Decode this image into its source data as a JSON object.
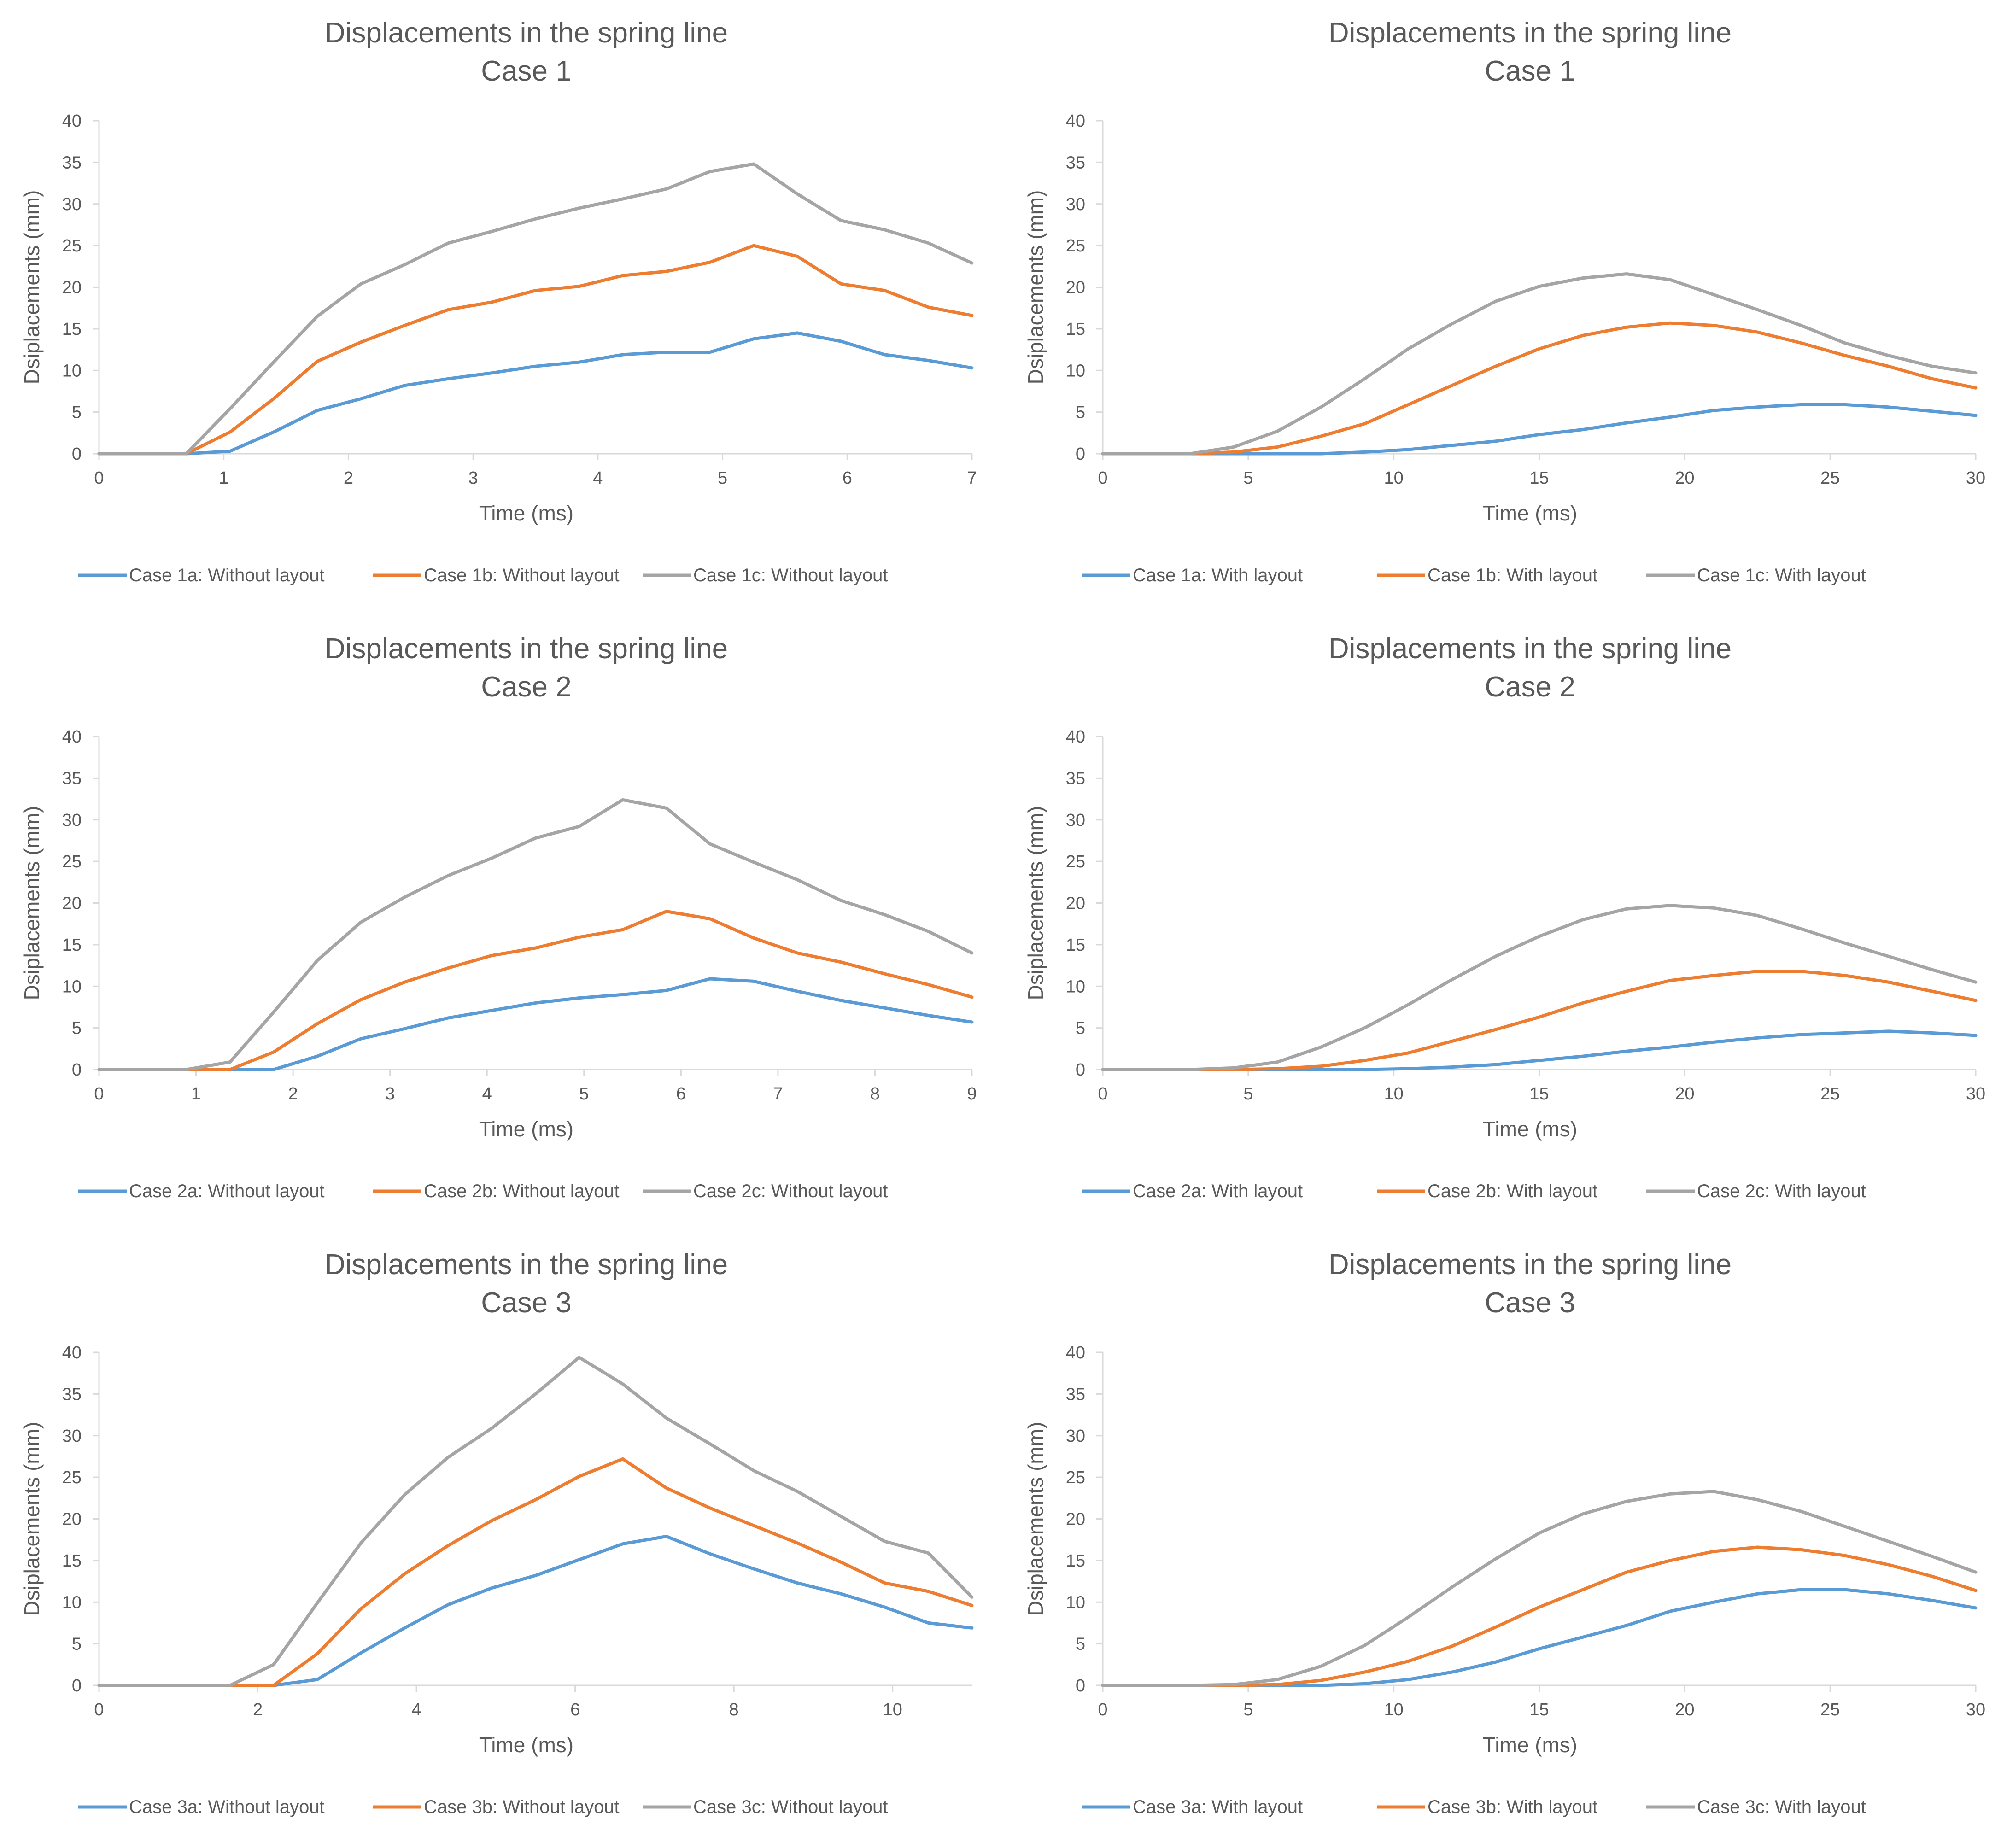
{
  "chart_data": [
    {
      "type": "line",
      "title": "Displacements in the spring line",
      "subtitle": "Case 1",
      "xlabel": "Time (ms)",
      "ylabel": "Dsiplacements (mm)",
      "xlim": [
        0,
        7
      ],
      "ylim": [
        0,
        40
      ],
      "xticks": [
        0,
        1,
        2,
        3,
        4,
        5,
        6,
        7
      ],
      "yticks": [
        0,
        5,
        10,
        15,
        20,
        25,
        30,
        35,
        40
      ],
      "legend_position": "bottom",
      "series": [
        {
          "name": "Case 1a: Without layout",
          "color": "#5B9BD5",
          "x": [
            0,
            0.7,
            1.05,
            1.4,
            1.75,
            2.1,
            2.45,
            2.8,
            3.15,
            3.5,
            3.85,
            4.2,
            4.55,
            4.9,
            5.25,
            5.6,
            5.95,
            6.3,
            6.65,
            7.0
          ],
          "y": [
            0,
            0,
            0.3,
            2.6,
            5.2,
            6.6,
            8.2,
            9.0,
            9.7,
            10.5,
            11.0,
            11.9,
            12.2,
            12.2,
            13.8,
            14.5,
            13.5,
            11.9,
            11.2,
            10.3
          ]
        },
        {
          "name": "Case 1b: Without layout",
          "color": "#ED7D31",
          "x": [
            0,
            0.7,
            1.05,
            1.4,
            1.75,
            2.1,
            2.45,
            2.8,
            3.15,
            3.5,
            3.85,
            4.2,
            4.55,
            4.9,
            5.25,
            5.6,
            5.95,
            6.3,
            6.65,
            7.0
          ],
          "y": [
            0,
            0,
            2.6,
            6.6,
            11.1,
            13.4,
            15.4,
            17.3,
            18.2,
            19.6,
            20.1,
            21.4,
            21.9,
            23.0,
            25.0,
            23.7,
            20.4,
            19.6,
            17.6,
            16.6
          ]
        },
        {
          "name": "Case 1c: Without layout",
          "color": "#A5A5A5",
          "x": [
            0,
            0.7,
            1.05,
            1.4,
            1.75,
            2.1,
            2.45,
            2.8,
            3.15,
            3.5,
            3.85,
            4.2,
            4.55,
            4.9,
            5.25,
            5.6,
            5.95,
            6.3,
            6.65,
            7.0
          ],
          "y": [
            0,
            0,
            5.4,
            11.0,
            16.5,
            20.4,
            22.7,
            25.3,
            26.7,
            28.2,
            29.5,
            30.6,
            31.8,
            33.9,
            34.8,
            31.2,
            28.0,
            26.9,
            25.3,
            22.9
          ]
        }
      ]
    },
    {
      "type": "line",
      "title": "Displacements in the spring line",
      "subtitle": "Case 1",
      "xlabel": "Time (ms)",
      "ylabel": "Dsiplacements (mm)",
      "xlim": [
        0,
        30
      ],
      "ylim": [
        0,
        40
      ],
      "xticks": [
        0,
        5,
        10,
        15,
        20,
        25,
        30
      ],
      "yticks": [
        0,
        5,
        10,
        15,
        20,
        25,
        30,
        35,
        40
      ],
      "legend_position": "bottom",
      "series": [
        {
          "name": "Case 1a: With layout",
          "color": "#5B9BD5",
          "x": [
            0,
            3,
            4.5,
            6,
            7.5,
            9,
            10.5,
            12,
            13.5,
            15,
            16.5,
            18,
            19.5,
            21,
            22.5,
            24,
            25.5,
            27,
            28.5,
            30
          ],
          "y": [
            0,
            0,
            0,
            0,
            0,
            0.2,
            0.5,
            1.0,
            1.5,
            2.3,
            2.9,
            3.7,
            4.4,
            5.2,
            5.6,
            5.9,
            5.9,
            5.6,
            5.1,
            4.6
          ]
        },
        {
          "name": "Case 1b: With layout",
          "color": "#ED7D31",
          "x": [
            0,
            3,
            4.5,
            6,
            7.5,
            9,
            10.5,
            12,
            13.5,
            15,
            16.5,
            18,
            19.5,
            21,
            22.5,
            24,
            25.5,
            27,
            28.5,
            30
          ],
          "y": [
            0,
            0,
            0.2,
            0.8,
            2.1,
            3.6,
            5.9,
            8.2,
            10.5,
            12.6,
            14.2,
            15.2,
            15.7,
            15.4,
            14.6,
            13.3,
            11.8,
            10.5,
            9.0,
            7.9
          ]
        },
        {
          "name": "Case 1c: With layout",
          "color": "#A5A5A5",
          "x": [
            0,
            3,
            4.5,
            6,
            7.5,
            9,
            10.5,
            12,
            13.5,
            15,
            16.5,
            18,
            19.5,
            21,
            22.5,
            24,
            25.5,
            27,
            28.5,
            30
          ],
          "y": [
            0,
            0,
            0.8,
            2.7,
            5.6,
            9.0,
            12.6,
            15.6,
            18.3,
            20.1,
            21.1,
            21.6,
            20.9,
            19.1,
            17.3,
            15.4,
            13.3,
            11.8,
            10.5,
            9.7
          ]
        }
      ]
    },
    {
      "type": "line",
      "title": "Displacements in the spring line",
      "subtitle": "Case 2",
      "xlabel": "Time (ms)",
      "ylabel": "Dsiplacements (mm)",
      "xlim": [
        0,
        9
      ],
      "ylim": [
        0,
        40
      ],
      "xticks": [
        0,
        1,
        2,
        3,
        4,
        5,
        6,
        7,
        8,
        9
      ],
      "yticks": [
        0,
        5,
        10,
        15,
        20,
        25,
        30,
        35,
        40
      ],
      "legend_position": "bottom",
      "series": [
        {
          "name": "Case 2a: Without layout",
          "color": "#5B9BD5",
          "x": [
            0,
            0.9,
            1.35,
            1.8,
            2.25,
            2.7,
            3.15,
            3.6,
            4.05,
            4.5,
            4.95,
            5.4,
            5.85,
            6.3,
            6.75,
            7.2,
            7.65,
            8.1,
            8.55,
            9.0
          ],
          "y": [
            0,
            0,
            0,
            0,
            1.6,
            3.7,
            4.9,
            6.2,
            7.1,
            8.0,
            8.6,
            9.0,
            9.5,
            10.9,
            10.6,
            9.4,
            8.3,
            7.4,
            6.5,
            5.7
          ]
        },
        {
          "name": "Case 2b: Without layout",
          "color": "#ED7D31",
          "x": [
            0,
            0.9,
            1.35,
            1.8,
            2.25,
            2.7,
            3.15,
            3.6,
            4.05,
            4.5,
            4.95,
            5.4,
            5.85,
            6.3,
            6.75,
            7.2,
            7.65,
            8.1,
            8.55,
            9.0
          ],
          "y": [
            0,
            0,
            0,
            2.1,
            5.5,
            8.4,
            10.5,
            12.2,
            13.7,
            14.6,
            15.9,
            16.8,
            19.0,
            18.1,
            15.8,
            14.0,
            12.9,
            11.5,
            10.2,
            8.7
          ]
        },
        {
          "name": "Case 2c: Without layout",
          "color": "#A5A5A5",
          "x": [
            0,
            0.9,
            1.35,
            1.8,
            2.25,
            2.7,
            3.15,
            3.6,
            4.05,
            4.5,
            4.95,
            5.4,
            5.85,
            6.3,
            6.75,
            7.2,
            7.65,
            8.1,
            8.55,
            9.0
          ],
          "y": [
            0,
            0,
            0.9,
            6.9,
            13.1,
            17.7,
            20.7,
            23.3,
            25.4,
            27.8,
            29.2,
            32.4,
            31.4,
            27.1,
            24.9,
            22.8,
            20.3,
            18.6,
            16.6,
            14.0
          ]
        }
      ]
    },
    {
      "type": "line",
      "title": "Displacements in the spring line",
      "subtitle": "Case 2",
      "xlabel": "Time (ms)",
      "ylabel": "Dsiplacements (mm)",
      "xlim": [
        0,
        30
      ],
      "ylim": [
        0,
        40
      ],
      "xticks": [
        0,
        5,
        10,
        15,
        20,
        25,
        30
      ],
      "yticks": [
        0,
        5,
        10,
        15,
        20,
        25,
        30,
        35,
        40
      ],
      "legend_position": "bottom",
      "series": [
        {
          "name": "Case 2a: With layout",
          "color": "#5B9BD5",
          "x": [
            0,
            3,
            4.5,
            6,
            7.5,
            9,
            10.5,
            12,
            13.5,
            15,
            16.5,
            18,
            19.5,
            21,
            22.5,
            24,
            25.5,
            27,
            28.5,
            30
          ],
          "y": [
            0,
            0,
            0,
            0,
            0,
            0,
            0.1,
            0.3,
            0.6,
            1.1,
            1.6,
            2.2,
            2.7,
            3.3,
            3.8,
            4.2,
            4.4,
            4.6,
            4.4,
            4.1
          ]
        },
        {
          "name": "Case 2b: With layout",
          "color": "#ED7D31",
          "x": [
            0,
            3,
            4.5,
            6,
            7.5,
            9,
            10.5,
            12,
            13.5,
            15,
            16.5,
            18,
            19.5,
            21,
            22.5,
            24,
            25.5,
            27,
            28.5,
            30
          ],
          "y": [
            0,
            0,
            0,
            0.1,
            0.4,
            1.1,
            2.0,
            3.4,
            4.8,
            6.3,
            8.0,
            9.4,
            10.7,
            11.3,
            11.8,
            11.8,
            11.3,
            10.5,
            9.4,
            8.3
          ]
        },
        {
          "name": "Case 2c: With layout",
          "color": "#A5A5A5",
          "x": [
            0,
            3,
            4.5,
            6,
            7.5,
            9,
            10.5,
            12,
            13.5,
            15,
            16.5,
            18,
            19.5,
            21,
            22.5,
            24,
            25.5,
            27,
            28.5,
            30
          ],
          "y": [
            0,
            0,
            0.2,
            0.9,
            2.7,
            5.0,
            7.8,
            10.8,
            13.6,
            16.0,
            18.0,
            19.3,
            19.7,
            19.4,
            18.5,
            16.9,
            15.2,
            13.6,
            12.0,
            10.5
          ]
        }
      ]
    },
    {
      "type": "line",
      "title": "Displacements in the spring line",
      "subtitle": "Case 3",
      "xlabel": "Time (ms)",
      "ylabel": "Dsiplacements (mm)",
      "xlim": [
        0,
        11
      ],
      "ylim": [
        0,
        40
      ],
      "xticks": [
        0,
        2,
        4,
        6,
        8,
        10
      ],
      "yticks": [
        0,
        5,
        10,
        15,
        20,
        25,
        30,
        35,
        40
      ],
      "legend_position": "bottom",
      "series": [
        {
          "name": "Case 3a: Without layout",
          "color": "#5B9BD5",
          "x": [
            0,
            1.65,
            2.2,
            2.75,
            3.3,
            3.85,
            4.4,
            4.95,
            5.5,
            6.05,
            6.6,
            7.15,
            7.7,
            8.25,
            8.8,
            9.35,
            9.9,
            10.45,
            11.0
          ],
          "y": [
            0,
            0,
            0,
            0.7,
            3.9,
            6.9,
            9.7,
            11.7,
            13.2,
            15.1,
            17.0,
            17.9,
            15.8,
            14.0,
            12.3,
            11.0,
            9.4,
            7.5,
            6.9
          ]
        },
        {
          "name": "Case 3b: Without layout",
          "color": "#ED7D31",
          "x": [
            0,
            1.65,
            2.2,
            2.75,
            3.3,
            3.85,
            4.4,
            4.95,
            5.5,
            6.05,
            6.6,
            7.15,
            7.7,
            8.25,
            8.8,
            9.35,
            9.9,
            10.45,
            11.0
          ],
          "y": [
            0,
            0,
            0,
            3.8,
            9.2,
            13.4,
            16.8,
            19.8,
            22.3,
            25.1,
            27.2,
            23.7,
            21.3,
            19.2,
            17.1,
            14.8,
            12.3,
            11.3,
            9.6
          ]
        },
        {
          "name": "Case 3c: Without layout",
          "color": "#A5A5A5",
          "x": [
            0,
            1.65,
            2.2,
            2.75,
            3.3,
            3.85,
            4.4,
            4.95,
            5.5,
            6.05,
            6.6,
            7.15,
            7.7,
            8.25,
            8.8,
            9.35,
            9.9,
            10.45,
            11.0
          ],
          "y": [
            0,
            0,
            2.5,
            9.9,
            17.1,
            22.9,
            27.4,
            30.9,
            35.0,
            39.4,
            36.2,
            32.1,
            29.0,
            25.8,
            23.3,
            20.3,
            17.3,
            15.9,
            10.6
          ]
        }
      ]
    },
    {
      "type": "line",
      "title": "Displacements in the spring line",
      "subtitle": "Case 3",
      "xlabel": "Time (ms)",
      "ylabel": "Dsiplacements (mm)",
      "xlim": [
        0,
        30
      ],
      "ylim": [
        0,
        40
      ],
      "xticks": [
        0,
        5,
        10,
        15,
        20,
        25,
        30
      ],
      "yticks": [
        0,
        5,
        10,
        15,
        20,
        25,
        30,
        35,
        40
      ],
      "legend_position": "bottom",
      "series": [
        {
          "name": "Case 3a: With layout",
          "color": "#5B9BD5",
          "x": [
            0,
            3,
            4.5,
            6,
            7.5,
            9,
            10.5,
            12,
            13.5,
            15,
            16.5,
            18,
            19.5,
            21,
            22.5,
            24,
            25.5,
            27,
            28.5,
            30
          ],
          "y": [
            0,
            0,
            0,
            0,
            0,
            0.2,
            0.7,
            1.6,
            2.8,
            4.4,
            5.8,
            7.2,
            8.9,
            10.0,
            11.0,
            11.5,
            11.5,
            11.0,
            10.2,
            9.3
          ]
        },
        {
          "name": "Case 3b: With layout",
          "color": "#ED7D31",
          "x": [
            0,
            3,
            4.5,
            6,
            7.5,
            9,
            10.5,
            12,
            13.5,
            15,
            16.5,
            18,
            19.5,
            21,
            22.5,
            24,
            25.5,
            27,
            28.5,
            30
          ],
          "y": [
            0,
            0,
            0,
            0.1,
            0.6,
            1.6,
            2.9,
            4.7,
            7.0,
            9.4,
            11.5,
            13.6,
            15.0,
            16.1,
            16.6,
            16.3,
            15.6,
            14.5,
            13.1,
            11.4
          ]
        },
        {
          "name": "Case 3c: With layout",
          "color": "#A5A5A5",
          "x": [
            0,
            3,
            4.5,
            6,
            7.5,
            9,
            10.5,
            12,
            13.5,
            15,
            16.5,
            18,
            19.5,
            21,
            22.5,
            24,
            25.5,
            27,
            28.5,
            30
          ],
          "y": [
            0,
            0,
            0.1,
            0.7,
            2.3,
            4.8,
            8.2,
            11.8,
            15.2,
            18.3,
            20.6,
            22.1,
            23.0,
            23.3,
            22.3,
            20.9,
            19.1,
            17.3,
            15.5,
            13.6
          ]
        }
      ]
    }
  ]
}
